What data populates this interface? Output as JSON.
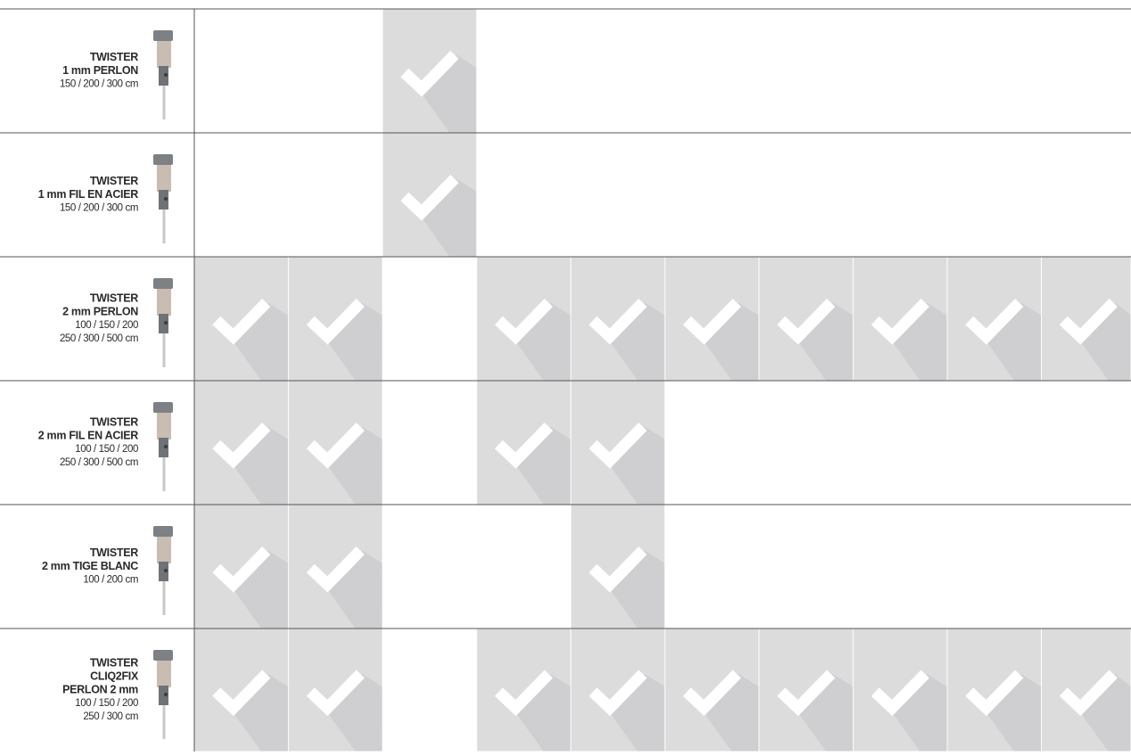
{
  "rows": [
    {
      "title": [
        "TWISTER",
        "1 mm PERLON"
      ],
      "sizes": [
        "150 / 200 / 300 cm"
      ],
      "checks": [
        false,
        false,
        true,
        false,
        false,
        false,
        false,
        false,
        false,
        false
      ]
    },
    {
      "title": [
        "TWISTER",
        "1 mm FIL EN ACIER"
      ],
      "sizes": [
        "150 / 200 / 300 cm"
      ],
      "checks": [
        false,
        false,
        true,
        false,
        false,
        false,
        false,
        false,
        false,
        false
      ]
    },
    {
      "title": [
        "TWISTER",
        "2 mm PERLON"
      ],
      "sizes": [
        "100 / 150 / 200",
        "250 / 300 / 500 cm"
      ],
      "checks": [
        true,
        true,
        false,
        true,
        true,
        true,
        true,
        true,
        true,
        true
      ]
    },
    {
      "title": [
        "TWISTER",
        "2 mm FIL EN ACIER"
      ],
      "sizes": [
        "100 / 150 / 200",
        "250 / 300 / 500 cm"
      ],
      "checks": [
        true,
        true,
        false,
        true,
        true,
        false,
        false,
        false,
        false,
        false
      ]
    },
    {
      "title": [
        "TWISTER",
        "2 mm TIGE BLANC"
      ],
      "sizes": [
        "100 / 200 cm"
      ],
      "checks": [
        true,
        true,
        false,
        false,
        true,
        false,
        false,
        false,
        false,
        false
      ]
    },
    {
      "title": [
        "TWISTER",
        "CLIQ2FIX",
        "PERLON 2 mm"
      ],
      "sizes": [
        "100 / 150 / 200",
        "250 / 300 cm"
      ],
      "checks": [
        true,
        true,
        false,
        true,
        true,
        true,
        true,
        true,
        true,
        true
      ]
    }
  ]
}
